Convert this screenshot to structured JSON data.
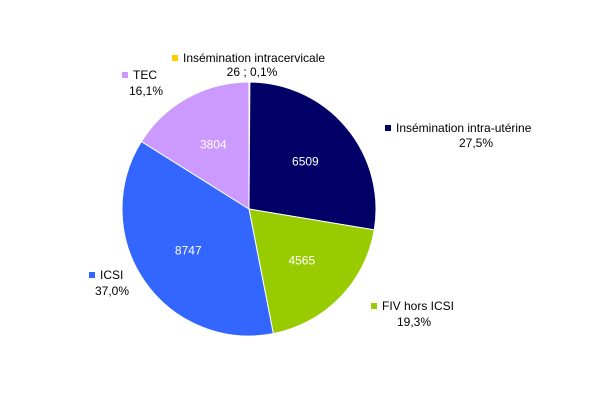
{
  "chart_data": {
    "type": "pie",
    "title": "",
    "start_angle_deg": 0,
    "direction": "clockwise",
    "slices": [
      {
        "name": "Insémination intracervicale",
        "value": 26,
        "value_label": "",
        "percent_label": "26 ; 0,1%",
        "color": "#FFCC00",
        "legend_marker": true
      },
      {
        "name": "Insémination intra-utérine",
        "value": 6509,
        "value_label": "6509",
        "percent_label": "27,5%",
        "color": "#000066",
        "legend_marker": true
      },
      {
        "name": "FIV  hors ICSI",
        "value": 4565,
        "value_label": "4565",
        "percent_label": "19,3%",
        "color": "#99CC00",
        "legend_marker": true
      },
      {
        "name": "ICSI",
        "value": 8747,
        "value_label": "8747",
        "percent_label": "37,0%",
        "color": "#3366FF",
        "legend_marker": true
      },
      {
        "name": "TEC",
        "value": 3804,
        "value_label": "3804",
        "percent_label": "16,1%",
        "color": "#CC99FF",
        "legend_marker": true
      }
    ]
  }
}
